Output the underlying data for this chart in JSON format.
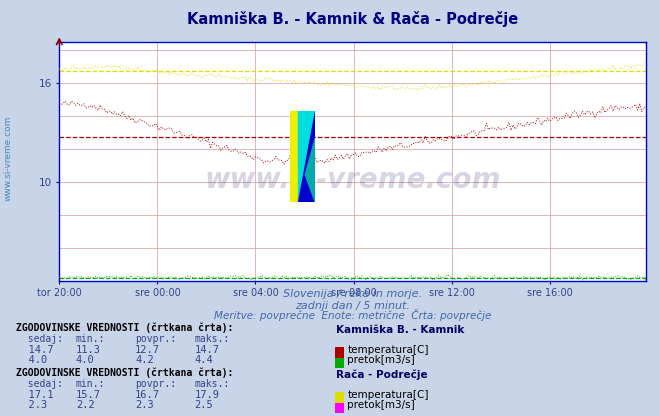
{
  "title": "Kamniška B. - Kamnik & Rača - Podrečje",
  "title_color": "#000080",
  "bg_color": "#c8d4e8",
  "plot_bg_color": "#ffffff",
  "grid_color_h": "#ddaaaa",
  "grid_color_v": "#ddaaaa",
  "xlabel_ticks": [
    "tor 20:00",
    "sre 00:00",
    "sre 04:00",
    "sre 08:00",
    "sre 12:00",
    "sre 16:00"
  ],
  "ytick_labels": [
    "10",
    "16"
  ],
  "ytick_vals": [
    10,
    16
  ],
  "subtitle1": "Slovenija / reke in morje.",
  "subtitle2": "zadnji dan / 5 minut.",
  "subtitle3": "Meritve: povprečne  Enote: metrične  Črta: povprečje",
  "subtitle_color": "#4466aa",
  "ylim_low": 4.0,
  "ylim_high": 18.5,
  "n_points": 288,
  "kamnik_temp_color": "#aa0000",
  "kamnik_temp_avg": 12.7,
  "kamnik_temp_min": 11.3,
  "kamnik_temp_max": 14.7,
  "kamnik_temp_sedaj": 14.7,
  "kamnik_pretok_color": "#00aa00",
  "kamnik_pretok_avg": 4.2,
  "kamnik_pretok_min": 4.0,
  "kamnik_pretok_max": 4.4,
  "kamnik_pretok_sedaj": 4.0,
  "raca_temp_color": "#dddd00",
  "raca_temp_avg": 16.7,
  "raca_temp_min": 15.7,
  "raca_temp_max": 17.9,
  "raca_temp_sedaj": 17.1,
  "raca_pretok_color": "#ff00ff",
  "raca_pretok_avg": 2.3,
  "raca_pretok_min": 2.2,
  "raca_pretok_max": 2.5,
  "raca_pretok_sedaj": 2.3,
  "watermark": "www.si-vreme.com",
  "watermark_color": "#1a1a6e",
  "watermark_alpha": 0.18,
  "left_label": "www.si-vreme.com",
  "left_label_color": "#4488bb",
  "axis_color": "#0000cc",
  "tick_color": "#334488"
}
